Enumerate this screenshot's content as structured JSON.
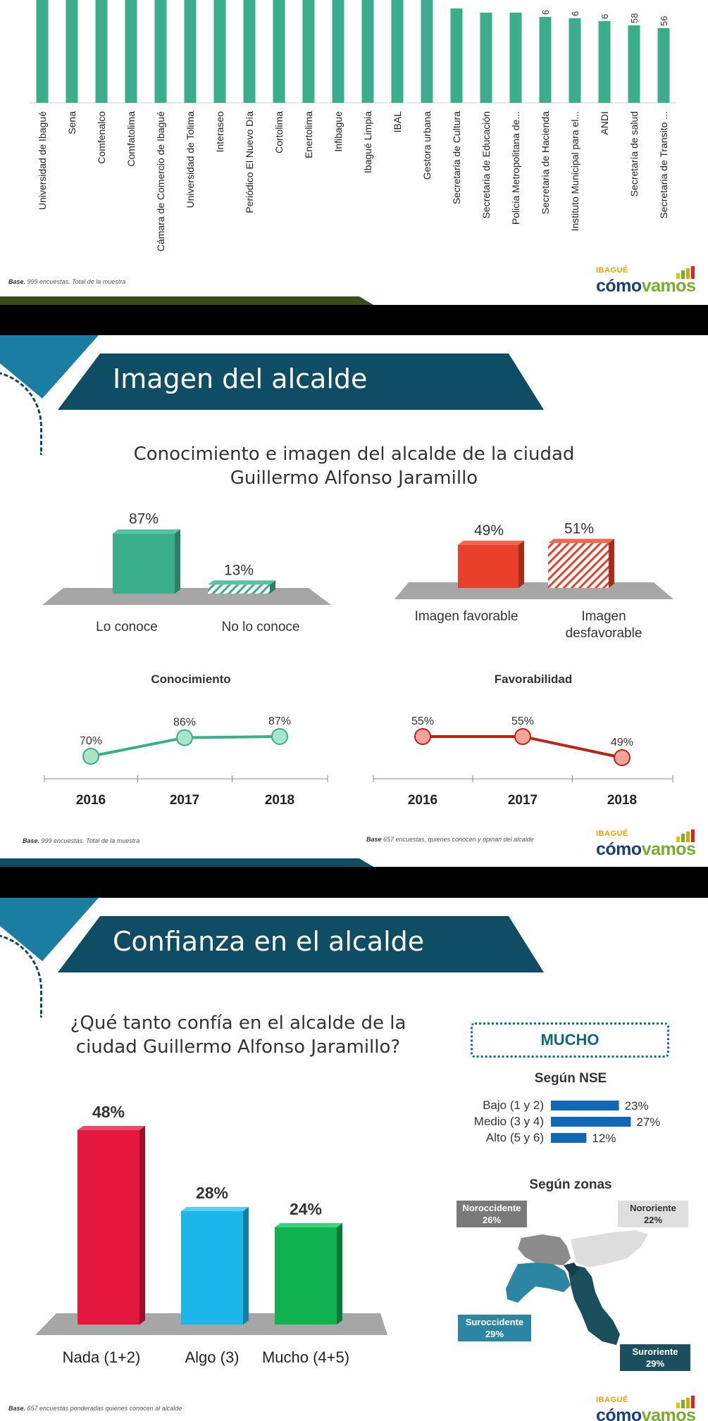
{
  "slide1": {
    "bars": [
      {
        "label": "Universidad de Ibagué",
        "value": null
      },
      {
        "label": "Sena",
        "value": null
      },
      {
        "label": "Comfenalco",
        "value": null
      },
      {
        "label": "Comfatolima",
        "value": null
      },
      {
        "label": "Cámara de Comercio de Ibagué",
        "value": null
      },
      {
        "label": "Universidad de Tolima",
        "value": null
      },
      {
        "label": "Interaseo",
        "value": null
      },
      {
        "label": "Periódico El Nuevo Día",
        "value": null
      },
      {
        "label": "Cortolima",
        "value": null
      },
      {
        "label": "Enertolima",
        "value": null
      },
      {
        "label": "Infibague",
        "value": null
      },
      {
        "label": "Ibagué Limpia",
        "value": null
      },
      {
        "label": "IBAL",
        "value": null
      },
      {
        "label": "Gestora urbana",
        "value": null
      },
      {
        "label": "Secretaria de Cultura",
        "value": null
      },
      {
        "label": "Secretaria de Educación",
        "value": null
      },
      {
        "label": "Policia Metropolitana de...",
        "value": null
      },
      {
        "label": "Secretaria de Hacienda",
        "value": "6"
      },
      {
        "label": "Instituto Municipal para el...",
        "value": "6"
      },
      {
        "label": "ANDI",
        "value": "6"
      },
      {
        "label": "Secretaría de salud",
        "value": "58"
      },
      {
        "label": "Secretaria de Transito ...",
        "value": "56"
      }
    ],
    "base_label": "Base.",
    "base_text": " 999 encuestas.  Total de la muestra"
  },
  "logo": {
    "top": "IBAGUÉ",
    "como": "cómo",
    "vamos": "vamos"
  },
  "slide2": {
    "title": "Imagen del alcalde",
    "subtitle_line1": "Conocimiento e imagen del alcalde de la ciudad",
    "subtitle_line2": "Guillermo Alfonso Jaramillo",
    "know_bars": [
      {
        "label": "Lo conoce",
        "value_label": "87%",
        "value": 87
      },
      {
        "label": "No lo conoce",
        "value_label": "13%",
        "value": 13
      }
    ],
    "image_bars": [
      {
        "label": "Imagen favorable",
        "value_label": "49%",
        "value": 49
      },
      {
        "label_line1": "Imagen",
        "label_line2": "desfavorable",
        "value_label": "51%",
        "value": 51
      }
    ],
    "conocimiento": {
      "title": "Conocimiento",
      "points": [
        {
          "year": "2016",
          "label": "70%",
          "value": 70
        },
        {
          "year": "2017",
          "label": "86%",
          "value": 86
        },
        {
          "year": "2018",
          "label": "87%",
          "value": 87
        }
      ]
    },
    "favorabilidad": {
      "title": "Favorabilidad",
      "points": [
        {
          "year": "2016",
          "label": "55%",
          "value": 55
        },
        {
          "year": "2017",
          "label": "55%",
          "value": 55
        },
        {
          "year": "2018",
          "label": "49%",
          "value": 49
        }
      ]
    },
    "base1_label": "Base.",
    "base1_text": " 999 encuestas.  Total de la muestra",
    "base2_label": "Base",
    "base2_text": " 657 encuestas, quienes conocen y opinan del alcalde"
  },
  "slide3": {
    "title": "Confianza en el alcalde",
    "question_line1": "¿Qué tanto confía en el alcalde de la",
    "question_line2": "ciudad Guillermo Alfonso Jaramillo?",
    "bars": [
      {
        "label": "Nada (1+2)",
        "value_label": "48%",
        "value": 48,
        "color": "#e5173f"
      },
      {
        "label": "Algo (3)",
        "value_label": "28%",
        "value": 28,
        "color": "#1bb7ea"
      },
      {
        "label": "Mucho (4+5)",
        "value_label": "24%",
        "value": 24,
        "color": "#0fb451"
      }
    ],
    "mucho_box": "MUCHO",
    "nse_title": "Según NSE",
    "nse": [
      {
        "label": "Bajo (1 y 2)",
        "value_label": "23%",
        "value": 23
      },
      {
        "label": "Medio (3 y 4)",
        "value_label": "27%",
        "value": 27
      },
      {
        "label": "Alto (5 y 6)",
        "value_label": "12%",
        "value": 12
      }
    ],
    "zonas_title": "Según zonas",
    "zones": [
      {
        "name": "Noroccidente",
        "value": "26%"
      },
      {
        "name": "Nororiente",
        "value": "22%"
      },
      {
        "name": "Suroccidente",
        "value": "29%"
      },
      {
        "name": "Suroriente",
        "value": "29%"
      }
    ],
    "base_label": "Base.",
    "base_text": " 657 encuestas ponderadas quienes conocen al alcalde"
  },
  "chart_data": [
    {
      "type": "bar",
      "categories": [
        "Lo conoce",
        "No lo conoce"
      ],
      "values": [
        87,
        13
      ],
      "title": "Conocimiento e imagen del alcalde de la ciudad Guillermo Alfonso Jaramillo"
    },
    {
      "type": "bar",
      "categories": [
        "Imagen favorable",
        "Imagen desfavorable"
      ],
      "values": [
        49,
        51
      ]
    },
    {
      "type": "line",
      "title": "Conocimiento",
      "x": [
        "2016",
        "2017",
        "2018"
      ],
      "values": [
        70,
        86,
        87
      ]
    },
    {
      "type": "line",
      "title": "Favorabilidad",
      "x": [
        "2016",
        "2017",
        "2018"
      ],
      "values": [
        55,
        55,
        49
      ]
    },
    {
      "type": "bar",
      "title": "¿Qué tanto confía en el alcalde de la ciudad Guillermo Alfonso Jaramillo?",
      "categories": [
        "Nada (1+2)",
        "Algo (3)",
        "Mucho (4+5)"
      ],
      "values": [
        48,
        28,
        24
      ]
    },
    {
      "type": "bar",
      "title": "Según NSE",
      "categories": [
        "Bajo (1 y 2)",
        "Medio (3 y 4)",
        "Alto (5 y 6)"
      ],
      "values": [
        23,
        27,
        12
      ]
    }
  ]
}
